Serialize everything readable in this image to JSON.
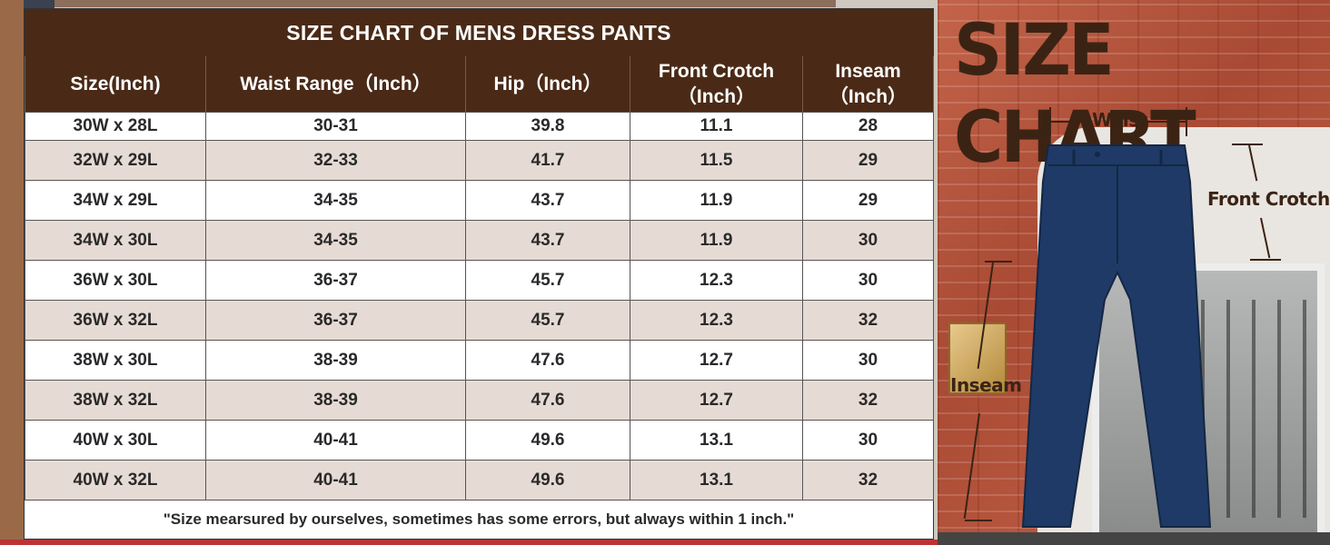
{
  "table": {
    "title": "SIZE CHART OF MENS DRESS PANTS",
    "headers": [
      [
        "Size(Inch)"
      ],
      [
        "Waist Range（Inch）"
      ],
      [
        "Hip（Inch）"
      ],
      [
        "Front Crotch",
        "（Inch）"
      ],
      [
        "Inseam",
        "（Inch）"
      ]
    ],
    "rows": [
      [
        "30W x 28L",
        "30-31",
        "39.8",
        "11.1",
        "28"
      ],
      [
        "32W x 29L",
        "32-33",
        "41.7",
        "11.5",
        "29"
      ],
      [
        "34W x 29L",
        "34-35",
        "43.7",
        "11.9",
        "29"
      ],
      [
        "34W x 30L",
        "34-35",
        "43.7",
        "11.9",
        "30"
      ],
      [
        "36W x 30L",
        "36-37",
        "45.7",
        "12.3",
        "30"
      ],
      [
        "36W x 32L",
        "36-37",
        "45.7",
        "12.3",
        "32"
      ],
      [
        "38W x 30L",
        "38-39",
        "47.6",
        "12.7",
        "30"
      ],
      [
        "38W x 32L",
        "38-39",
        "47.6",
        "12.7",
        "32"
      ],
      [
        "40W x 30L",
        "40-41",
        "49.6",
        "13.1",
        "30"
      ],
      [
        "40W x 32L",
        "40-41",
        "49.6",
        "13.1",
        "32"
      ]
    ],
    "note": "\"Size mearsured by ourselves, sometimes has some errors, but always within 1 inch.\""
  },
  "illustration": {
    "title": "SIZE CHART",
    "labels": {
      "waist": "Waist",
      "front_crotch": "Front Crotch",
      "inseam": "Inseam"
    }
  },
  "colors": {
    "header_brown": "#4a2a17",
    "alt_row": "#e6dbd4",
    "pants_navy": "#1f3a66"
  }
}
